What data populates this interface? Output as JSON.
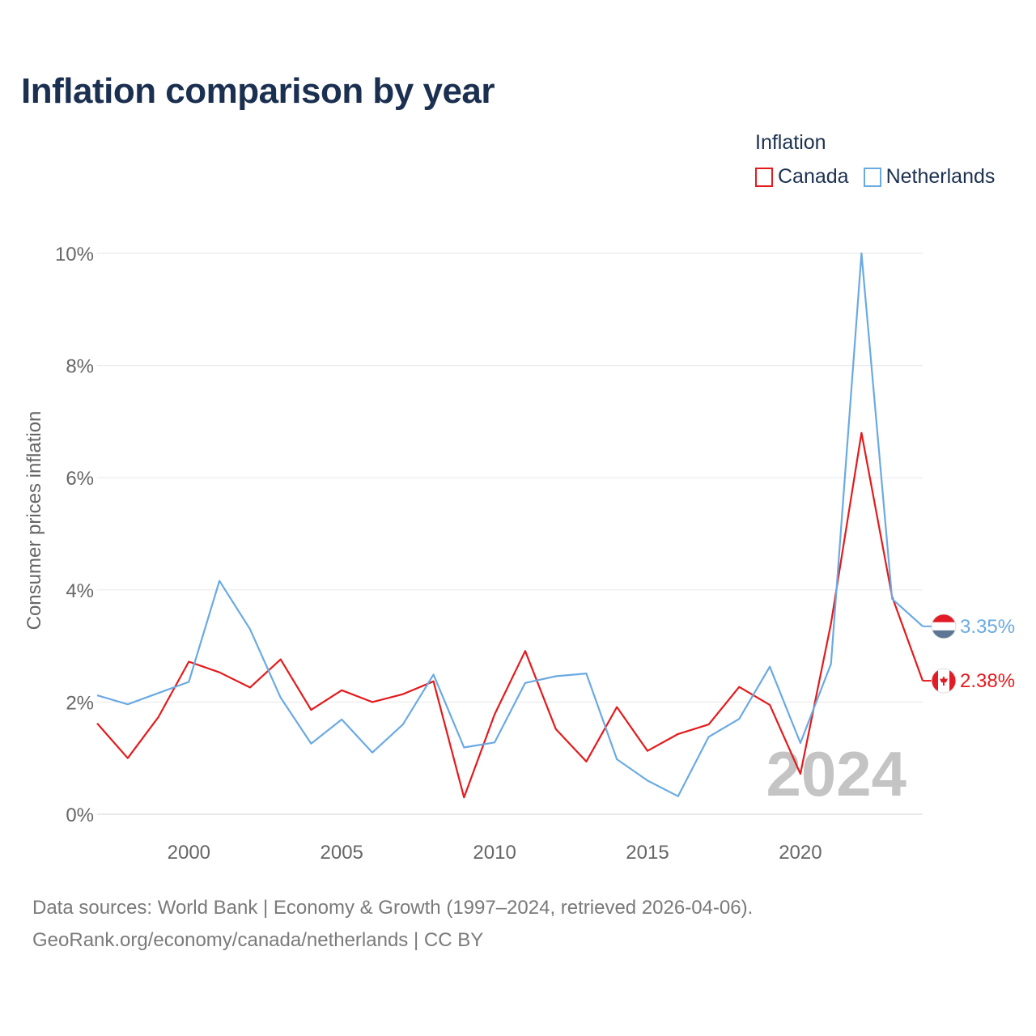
{
  "title": "Inflation comparison by year",
  "legend": {
    "title": "Inflation",
    "items": [
      {
        "name": "Canada",
        "color": "#e41a1c"
      },
      {
        "name": "Netherlands",
        "color": "#6aaae2"
      }
    ]
  },
  "source_line_1": "Data sources: World Bank | Economy & Growth (1997–2024, retrieved 2026-04-06).",
  "source_line_2": "GeoRank.org/economy/canada/netherlands | CC BY",
  "chart_data": {
    "type": "line",
    "title": "Inflation comparison by year",
    "xlabel": "",
    "ylabel": "Consumer prices inflation",
    "watermark": "2024",
    "xlim": [
      1997,
      2024
    ],
    "ylim": [
      0,
      10
    ],
    "x_ticks": [
      2000,
      2005,
      2010,
      2015,
      2020
    ],
    "y_ticks": [
      0,
      2,
      4,
      6,
      8,
      10
    ],
    "y_tick_labels": [
      "0%",
      "2%",
      "4%",
      "6%",
      "8%",
      "10%"
    ],
    "grid": true,
    "x": [
      1997,
      1998,
      1999,
      2000,
      2001,
      2002,
      2003,
      2004,
      2005,
      2006,
      2007,
      2008,
      2009,
      2010,
      2011,
      2012,
      2013,
      2014,
      2015,
      2016,
      2017,
      2018,
      2019,
      2020,
      2021,
      2022,
      2023,
      2024
    ],
    "series": [
      {
        "name": "Canada",
        "color": "#e41a1c",
        "end_label": "2.38%",
        "flag_icon": "canada-flag-icon",
        "values": [
          1.62,
          1.0,
          1.73,
          2.72,
          2.53,
          2.26,
          2.76,
          1.86,
          2.21,
          2.0,
          2.14,
          2.37,
          0.3,
          1.78,
          2.91,
          1.52,
          0.94,
          1.91,
          1.13,
          1.43,
          1.6,
          2.27,
          1.95,
          0.72,
          3.4,
          6.8,
          3.88,
          2.38
        ]
      },
      {
        "name": "Netherlands",
        "color": "#6aaae2",
        "end_label": "3.35%",
        "flag_icon": "netherlands-flag-icon",
        "values": [
          2.12,
          1.96,
          2.16,
          2.36,
          4.16,
          3.3,
          2.08,
          1.26,
          1.69,
          1.1,
          1.6,
          2.49,
          1.19,
          1.28,
          2.34,
          2.46,
          2.51,
          0.98,
          0.6,
          0.32,
          1.38,
          1.7,
          2.63,
          1.27,
          2.68,
          10.0,
          3.84,
          3.35
        ]
      }
    ]
  }
}
